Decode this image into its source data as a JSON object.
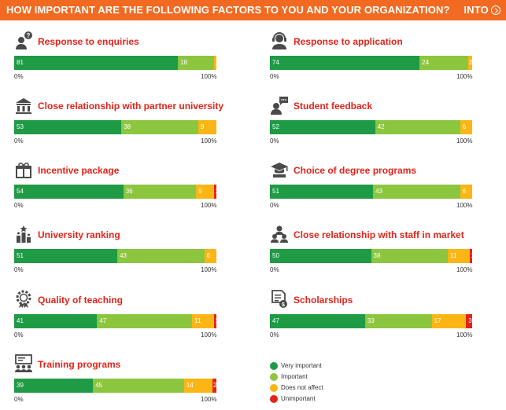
{
  "header": {
    "title": "HOW IMPORTANT ARE THE FOLLOWING FACTORS TO YOU AND YOUR ORGANIZATION?",
    "logo_text": "INTO",
    "logo_icon": "into-logo-mark-icon",
    "background": "#f26a21"
  },
  "colors": {
    "very_important": "#1f9a45",
    "important": "#8cc63f",
    "does_not_affect": "#fbb615",
    "unimportant": "#e2231a",
    "title_red": "#e2231a"
  },
  "chart_data": {
    "type": "bar",
    "stacked": true,
    "orientation": "horizontal",
    "title": "HOW IMPORTANT ARE THE FOLLOWING FACTORS TO YOU AND YOUR ORGANIZATION?",
    "x_min_label": "0%",
    "x_max_label": "100%",
    "legend_position": "bottom-right",
    "legend": [
      "Very important",
      "Important",
      "Does not affect",
      "Unimportant"
    ],
    "charts": [
      {
        "title": "Response to enquiries",
        "icon": "question-person-icon",
        "values": [
          81,
          18,
          1,
          0
        ]
      },
      {
        "title": "Response to application",
        "icon": "headset-person-icon",
        "values": [
          74,
          24,
          2,
          0
        ]
      },
      {
        "title": "Close relationship with partner university",
        "icon": "university-building-icon",
        "values": [
          53,
          38,
          9,
          0
        ]
      },
      {
        "title": "Student feedback",
        "icon": "speech-bubble-person-icon",
        "values": [
          52,
          42,
          6,
          0
        ]
      },
      {
        "title": "Incentive package",
        "icon": "gift-icon",
        "values": [
          54,
          36,
          9,
          1
        ]
      },
      {
        "title": "Choice of degree programs",
        "icon": "graduation-cap-book-icon",
        "values": [
          51,
          43,
          6,
          0
        ]
      },
      {
        "title": "University ranking",
        "icon": "ranking-stars-icon",
        "values": [
          51,
          43,
          6,
          0
        ]
      },
      {
        "title": "Close relationship with staff in market",
        "icon": "staff-group-icon",
        "values": [
          50,
          38,
          11,
          1
        ]
      },
      {
        "title": "Quality of teaching",
        "icon": "award-gear-icon",
        "values": [
          41,
          47,
          11,
          1
        ]
      },
      {
        "title": "Scholarships",
        "icon": "document-coin-icon",
        "values": [
          47,
          33,
          17,
          3
        ]
      },
      {
        "title": "Training programs",
        "icon": "presentation-audience-icon",
        "values": [
          39,
          45,
          14,
          2
        ]
      }
    ]
  }
}
